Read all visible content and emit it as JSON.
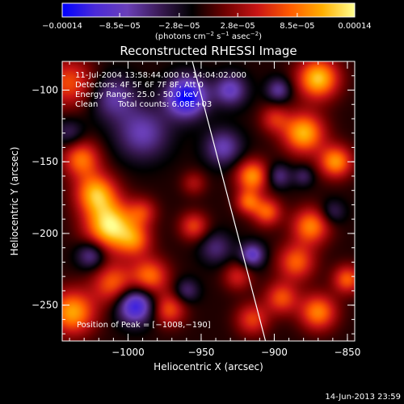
{
  "chart_data": {
    "type": "heatmap",
    "title": "Reconstructed RHESSI Image",
    "xlabel": "Heliocentric X (arcsec)",
    "ylabel": "Heliocentric Y (arcsec)",
    "xlim": [
      -1045,
      -845
    ],
    "ylim": [
      -275,
      -80
    ],
    "x_ticks": [
      -1000,
      -950,
      -900,
      -850
    ],
    "x_tick_labels": [
      "−1000",
      "−950",
      "−900",
      "−850"
    ],
    "y_ticks": [
      -250,
      -200,
      -150,
      -100
    ],
    "y_tick_labels": [
      "−250",
      "−200",
      "−150",
      "−100"
    ],
    "colorbar": {
      "min": -0.00014,
      "max": 0.00014,
      "ticks": [
        -0.00014,
        -8.5e-05,
        -2.8e-05,
        2.8e-05,
        8.5e-05,
        0.00014
      ],
      "tick_labels": [
        "−0.00014",
        "−8.5e−05",
        "−2.8e−05",
        "2.8e−05",
        "8.5e−05",
        "0.00014"
      ],
      "units_prefix": "(photons cm",
      "units_exp1": "−2",
      "units_mid": " s",
      "units_exp2": "−1",
      "units_mid2": " asec",
      "units_exp3": "−2",
      "units_suffix": ")",
      "colors": [
        "#0000ff",
        "#4a2ad8",
        "#6a3fb8",
        "#3a1a55",
        "#000000",
        "#6e0000",
        "#c81414",
        "#ff5a00",
        "#ffae00",
        "#ffff90"
      ]
    },
    "grid": false,
    "blobs": [
      {
        "x": -1012,
        "y": -195,
        "amp": 1.0,
        "s": 12
      },
      {
        "x": -1022,
        "y": -172,
        "amp": 0.8,
        "s": 10
      },
      {
        "x": -1032,
        "y": -148,
        "amp": 0.65,
        "s": 9
      },
      {
        "x": -1040,
        "y": -95,
        "amp": 0.55,
        "s": 12
      },
      {
        "x": -1038,
        "y": -255,
        "amp": 0.8,
        "s": 11
      },
      {
        "x": -1010,
        "y": -235,
        "amp": 0.6,
        "s": 10
      },
      {
        "x": -985,
        "y": -230,
        "amp": 0.65,
        "s": 9
      },
      {
        "x": -972,
        "y": -253,
        "amp": 0.55,
        "s": 8
      },
      {
        "x": -995,
        "y": -205,
        "amp": 0.5,
        "s": 8
      },
      {
        "x": -955,
        "y": -195,
        "amp": 0.5,
        "s": 7
      },
      {
        "x": -990,
        "y": -185,
        "amp": 0.4,
        "s": 7
      },
      {
        "x": -915,
        "y": -160,
        "amp": 0.75,
        "s": 8
      },
      {
        "x": -918,
        "y": -178,
        "amp": 0.55,
        "s": 6
      },
      {
        "x": -905,
        "y": -185,
        "amp": 0.6,
        "s": 7
      },
      {
        "x": -870,
        "y": -92,
        "amp": 0.9,
        "s": 10
      },
      {
        "x": -880,
        "y": -130,
        "amp": 0.85,
        "s": 10
      },
      {
        "x": -858,
        "y": -150,
        "amp": 0.75,
        "s": 8
      },
      {
        "x": -875,
        "y": -195,
        "amp": 0.7,
        "s": 9
      },
      {
        "x": -885,
        "y": -220,
        "amp": 0.6,
        "s": 9
      },
      {
        "x": -870,
        "y": -255,
        "amp": 0.7,
        "s": 9
      },
      {
        "x": -850,
        "y": -232,
        "amp": 0.6,
        "s": 7
      },
      {
        "x": -895,
        "y": -245,
        "amp": 0.55,
        "s": 8
      },
      {
        "x": -915,
        "y": -260,
        "amp": 0.5,
        "s": 8
      },
      {
        "x": -900,
        "y": -120,
        "amp": 0.4,
        "s": 7
      },
      {
        "x": -925,
        "y": -230,
        "amp": 0.4,
        "s": 7
      },
      {
        "x": -955,
        "y": -165,
        "amp": 0.3,
        "s": 6
      },
      {
        "x": -960,
        "y": -105,
        "amp": -0.95,
        "s": 10
      },
      {
        "x": -995,
        "y": -250,
        "amp": -0.85,
        "s": 9
      },
      {
        "x": -1025,
        "y": -215,
        "amp": -0.5,
        "s": 7
      },
      {
        "x": -990,
        "y": -130,
        "amp": -0.5,
        "s": 13
      },
      {
        "x": -1010,
        "y": -105,
        "amp": -0.45,
        "s": 11
      },
      {
        "x": -935,
        "y": -140,
        "amp": -0.5,
        "s": 9
      },
      {
        "x": -940,
        "y": -210,
        "amp": -0.35,
        "s": 8
      },
      {
        "x": -915,
        "y": -215,
        "amp": -0.6,
        "s": 6
      },
      {
        "x": -930,
        "y": -100,
        "amp": -0.55,
        "s": 8
      },
      {
        "x": -897,
        "y": -100,
        "amp": -0.45,
        "s": 6
      },
      {
        "x": -897,
        "y": -160,
        "amp": -0.4,
        "s": 6
      },
      {
        "x": -1040,
        "y": -130,
        "amp": -0.3,
        "s": 7
      },
      {
        "x": -960,
        "y": -240,
        "amp": -0.35,
        "s": 6
      },
      {
        "x": -860,
        "y": -185,
        "amp": -0.3,
        "s": 6
      },
      {
        "x": -880,
        "y": -160,
        "amp": -0.3,
        "s": 5
      }
    ],
    "limb_line": [
      [
        -956,
        -80
      ],
      [
        -906,
        -275
      ]
    ],
    "peak": {
      "x": -1008,
      "y": -190
    }
  },
  "annotations": {
    "time_range": "11-Jul-2004 13:58:44.000 to 14:04:02.000",
    "detectors": "Detectors: 4F 5F 6F 7F 8F, Att 0",
    "energy_range": "Energy Range: 25.0 - 50.0 keV",
    "clean": "Clean",
    "total_counts": "Total counts: 6.08E+03",
    "peak_position": "Position of Peak = [−1008,−190]"
  },
  "footer": {
    "timestamp": "14-Jun-2013 23:59"
  }
}
